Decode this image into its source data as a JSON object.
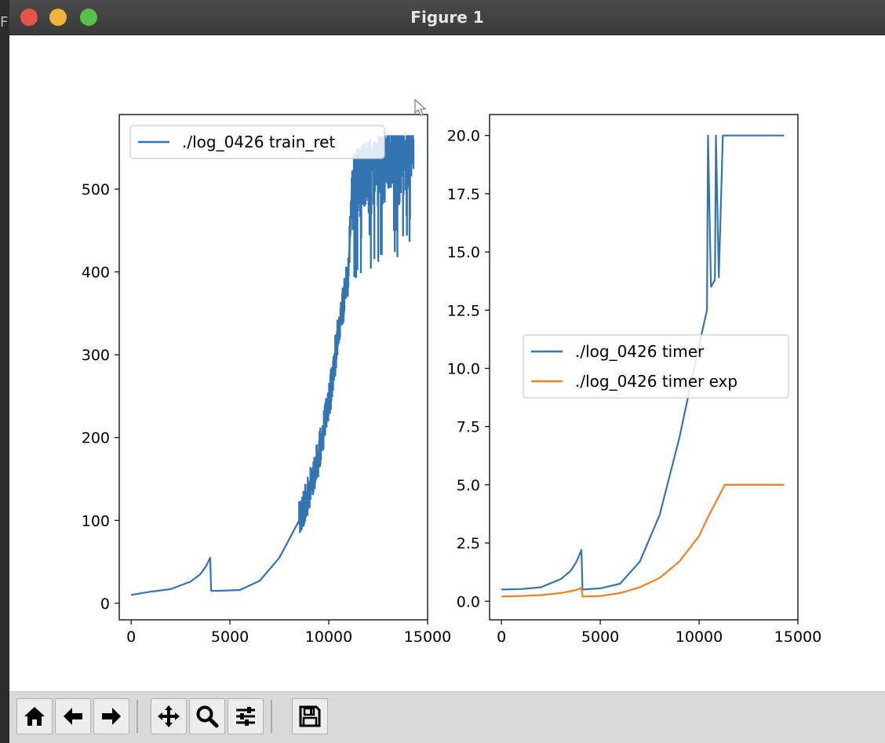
{
  "window": {
    "title": "Figure 1",
    "edge_char": "F"
  },
  "toolbar": {
    "buttons": [
      {
        "name": "home-button",
        "icon": "home-icon"
      },
      {
        "name": "back-button",
        "icon": "arrow-left-icon"
      },
      {
        "name": "forward-button",
        "icon": "arrow-right-icon"
      },
      {
        "name": "pan-button",
        "icon": "move-icon"
      },
      {
        "name": "zoom-button",
        "icon": "magnifier-icon"
      },
      {
        "name": "configure-subplots-button",
        "icon": "sliders-icon"
      },
      {
        "name": "save-button",
        "icon": "floppy-disk-icon"
      }
    ]
  },
  "chart_data": [
    {
      "type": "line",
      "title": "",
      "xlabel": "",
      "ylabel": "",
      "xlim": [
        -600,
        15000
      ],
      "ylim": [
        -20,
        590
      ],
      "xticks": [
        "0",
        "5000",
        "10000",
        "15000"
      ],
      "yticks": [
        "0",
        "100",
        "200",
        "300",
        "400",
        "500"
      ],
      "legend_position": "upper-left",
      "series": [
        {
          "name": "./log_0426 train_ret",
          "color": "#3574b3",
          "x": [
            0,
            1000,
            2000,
            3000,
            3500,
            3800,
            4000,
            4050,
            4500,
            5500,
            6500,
            7500,
            8500,
            9000,
            9500,
            10000,
            10500,
            11000,
            11200,
            12000,
            13000,
            14300
          ],
          "y": [
            10,
            14,
            17,
            26,
            35,
            45,
            55,
            15,
            15,
            16,
            27,
            55,
            100,
            135,
            180,
            240,
            330,
            400,
            520,
            535,
            545,
            555
          ]
        }
      ]
    },
    {
      "type": "line",
      "title": "",
      "xlabel": "",
      "ylabel": "",
      "xlim": [
        -600,
        15000
      ],
      "ylim": [
        -0.8,
        20.9
      ],
      "xticks": [
        "0",
        "5000",
        "10000",
        "15000"
      ],
      "yticks": [
        "0.0",
        "2.5",
        "5.0",
        "7.5",
        "10.0",
        "12.5",
        "15.0",
        "17.5",
        "20.0"
      ],
      "legend_position": "center-right",
      "series": [
        {
          "name": "./log_0426 timer",
          "color": "#3574b3",
          "x": [
            0,
            1000,
            2000,
            3000,
            3500,
            3800,
            4050,
            4100,
            5000,
            6000,
            7000,
            8000,
            9000,
            9500,
            10000,
            10400,
            10450,
            10600,
            10800,
            10850,
            11000,
            11200,
            12000,
            13000,
            14300
          ],
          "y": [
            0.5,
            0.52,
            0.6,
            0.95,
            1.3,
            1.7,
            2.2,
            0.5,
            0.55,
            0.75,
            1.7,
            3.7,
            7.0,
            9.0,
            11.0,
            12.5,
            20.0,
            13.5,
            13.8,
            20.0,
            13.9,
            20.0,
            20.0,
            20.0,
            20.0
          ]
        },
        {
          "name": "./log_0426 timer exp",
          "color": "#f28022",
          "x": [
            0,
            1000,
            2000,
            3000,
            3800,
            4050,
            4100,
            5000,
            6000,
            7000,
            8000,
            9000,
            10000,
            10500,
            11000,
            11300,
            12000,
            13000,
            14300
          ],
          "y": [
            0.2,
            0.22,
            0.26,
            0.35,
            0.48,
            0.58,
            0.2,
            0.22,
            0.35,
            0.6,
            1.0,
            1.7,
            2.8,
            3.7,
            4.5,
            5.0,
            5.0,
            5.0,
            5.0
          ]
        }
      ]
    }
  ]
}
